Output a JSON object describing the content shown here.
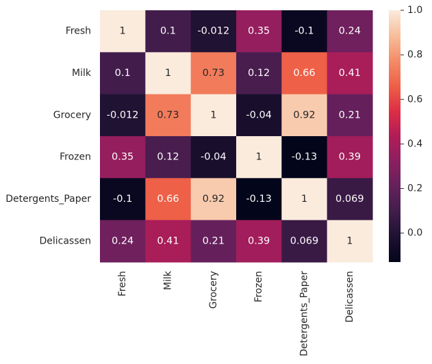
{
  "chart_data": {
    "type": "heatmap",
    "title": "",
    "xlabel": "",
    "ylabel": "",
    "row_labels": [
      "Fresh",
      "Milk",
      "Grocery",
      "Frozen",
      "Detergents_Paper",
      "Delicassen"
    ],
    "col_labels": [
      "Fresh",
      "Milk",
      "Grocery",
      "Frozen",
      "Detergents_Paper",
      "Delicassen"
    ],
    "values": [
      [
        1,
        0.1,
        -0.012,
        0.35,
        -0.1,
        0.24
      ],
      [
        0.1,
        1,
        0.73,
        0.12,
        0.66,
        0.41
      ],
      [
        -0.012,
        0.73,
        1,
        -0.04,
        0.92,
        0.21
      ],
      [
        0.35,
        0.12,
        -0.04,
        1,
        -0.13,
        0.39
      ],
      [
        -0.1,
        0.66,
        0.92,
        -0.13,
        1,
        0.069
      ],
      [
        0.24,
        0.41,
        0.21,
        0.39,
        0.069,
        1
      ]
    ],
    "cell_labels": [
      [
        "1",
        "0.1",
        "-0.012",
        "0.35",
        "-0.1",
        "0.24"
      ],
      [
        "0.1",
        "1",
        "0.73",
        "0.12",
        "0.66",
        "0.41"
      ],
      [
        "-0.012",
        "0.73",
        "1",
        "-0.04",
        "0.92",
        "0.21"
      ],
      [
        "0.35",
        "0.12",
        "-0.04",
        "1",
        "-0.13",
        "0.39"
      ],
      [
        "-0.1",
        "0.66",
        "0.92",
        "-0.13",
        "1",
        "0.069"
      ],
      [
        "0.24",
        "0.41",
        "0.21",
        "0.39",
        "0.069",
        "1"
      ]
    ],
    "colormap": "rocket",
    "vmin": -0.13,
    "vmax": 1.0,
    "colorbar": {
      "ticks": [
        0.0,
        0.2,
        0.4,
        0.6,
        0.8,
        1.0
      ],
      "tick_labels": [
        "0.0",
        "0.2",
        "0.4",
        "0.6",
        "0.8",
        "1.0"
      ],
      "placement": "right"
    },
    "grid": false,
    "legend": "none"
  }
}
